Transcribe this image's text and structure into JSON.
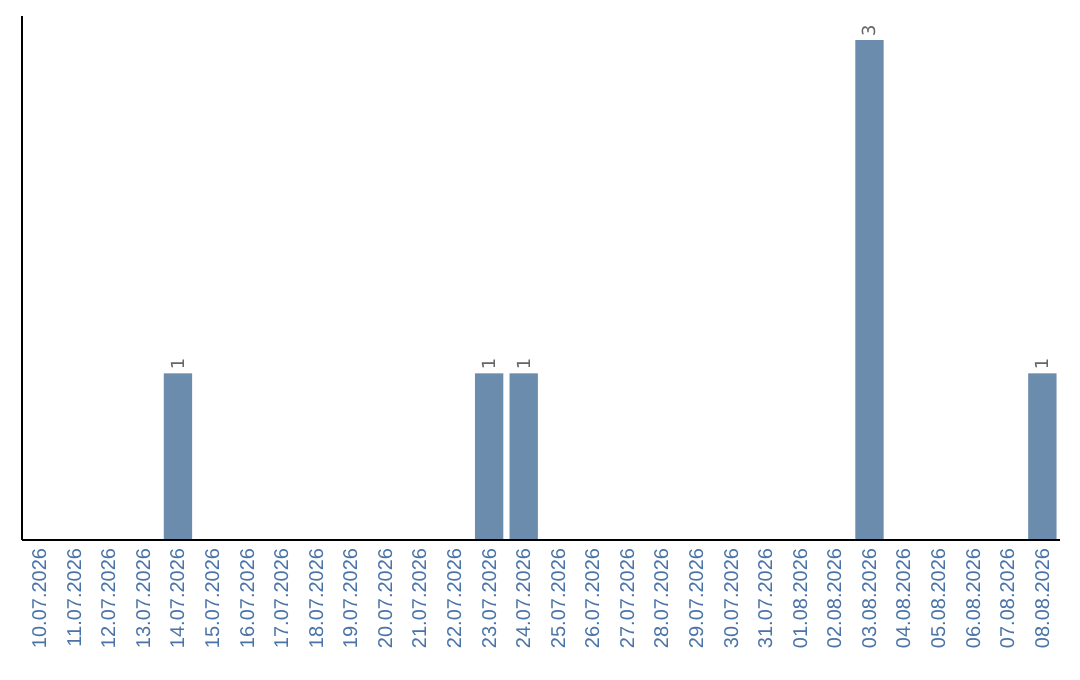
{
  "chart_data": {
    "type": "bar",
    "categories": [
      "10.07.2026",
      "11.07.2026",
      "12.07.2026",
      "13.07.2026",
      "14.07.2026",
      "15.07.2026",
      "16.07.2026",
      "17.07.2026",
      "18.07.2026",
      "19.07.2026",
      "20.07.2026",
      "21.07.2026",
      "22.07.2026",
      "23.07.2026",
      "24.07.2026",
      "25.07.2026",
      "26.07.2026",
      "27.07.2026",
      "28.07.2026",
      "29.07.2026",
      "30.07.2026",
      "31.07.2026",
      "01.08.2026",
      "02.08.2026",
      "03.08.2026",
      "04.08.2026",
      "05.08.2026",
      "06.08.2026",
      "07.08.2026",
      "08.08.2026"
    ],
    "values": [
      0,
      0,
      0,
      0,
      1,
      0,
      0,
      0,
      0,
      0,
      0,
      0,
      0,
      1,
      1,
      0,
      0,
      0,
      0,
      0,
      0,
      0,
      0,
      0,
      3,
      0,
      0,
      0,
      0,
      1
    ],
    "color": "#6b8cad",
    "value_labels": [
      null,
      null,
      null,
      null,
      "1",
      null,
      null,
      null,
      null,
      null,
      null,
      null,
      null,
      "1",
      "1",
      null,
      null,
      null,
      null,
      null,
      null,
      null,
      null,
      null,
      "3",
      null,
      null,
      null,
      null,
      "1"
    ]
  }
}
